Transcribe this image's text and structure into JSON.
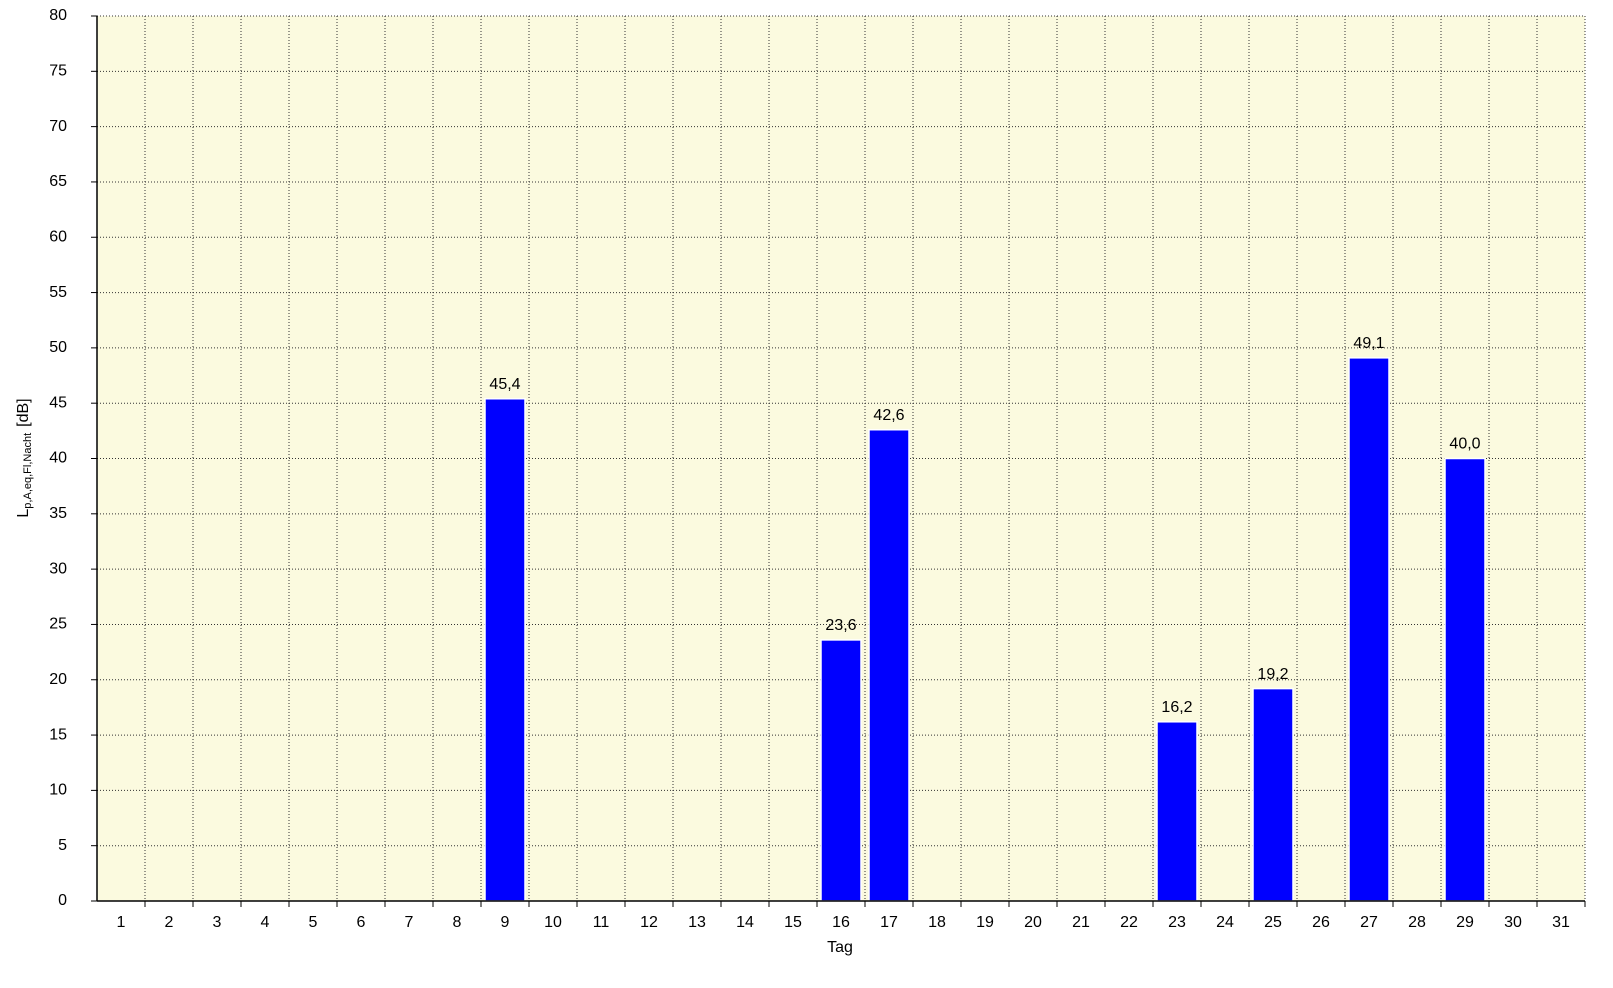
{
  "chart_data": {
    "type": "bar",
    "x_label": "Tag",
    "y_label": {
      "main": "L",
      "sub": "p,A,eq,Fl,Nacht",
      "unit": "[dB]"
    },
    "categories": [
      "1",
      "2",
      "3",
      "4",
      "5",
      "6",
      "7",
      "8",
      "9",
      "10",
      "11",
      "12",
      "13",
      "14",
      "15",
      "16",
      "17",
      "18",
      "19",
      "20",
      "21",
      "22",
      "23",
      "24",
      "25",
      "26",
      "27",
      "28",
      "29",
      "30",
      "31"
    ],
    "values": [
      null,
      null,
      null,
      null,
      null,
      null,
      null,
      null,
      45.4,
      null,
      null,
      null,
      null,
      null,
      null,
      23.6,
      42.6,
      null,
      null,
      null,
      null,
      null,
      16.2,
      null,
      19.2,
      null,
      49.1,
      null,
      40.0,
      null,
      null
    ],
    "value_labels": [
      null,
      null,
      null,
      null,
      null,
      null,
      null,
      null,
      "45,4",
      null,
      null,
      null,
      null,
      null,
      null,
      "23,6",
      "42,6",
      null,
      null,
      null,
      null,
      null,
      "16,2",
      null,
      "19,2",
      null,
      "49,1",
      null,
      "40,0",
      null,
      null
    ],
    "color": "#0000ff",
    "ylim": [
      0,
      80
    ],
    "yticks": [
      0,
      5,
      10,
      15,
      20,
      25,
      30,
      35,
      40,
      45,
      50,
      55,
      60,
      65,
      70,
      75,
      80
    ],
    "grid": true,
    "background": "#fbfadf"
  }
}
